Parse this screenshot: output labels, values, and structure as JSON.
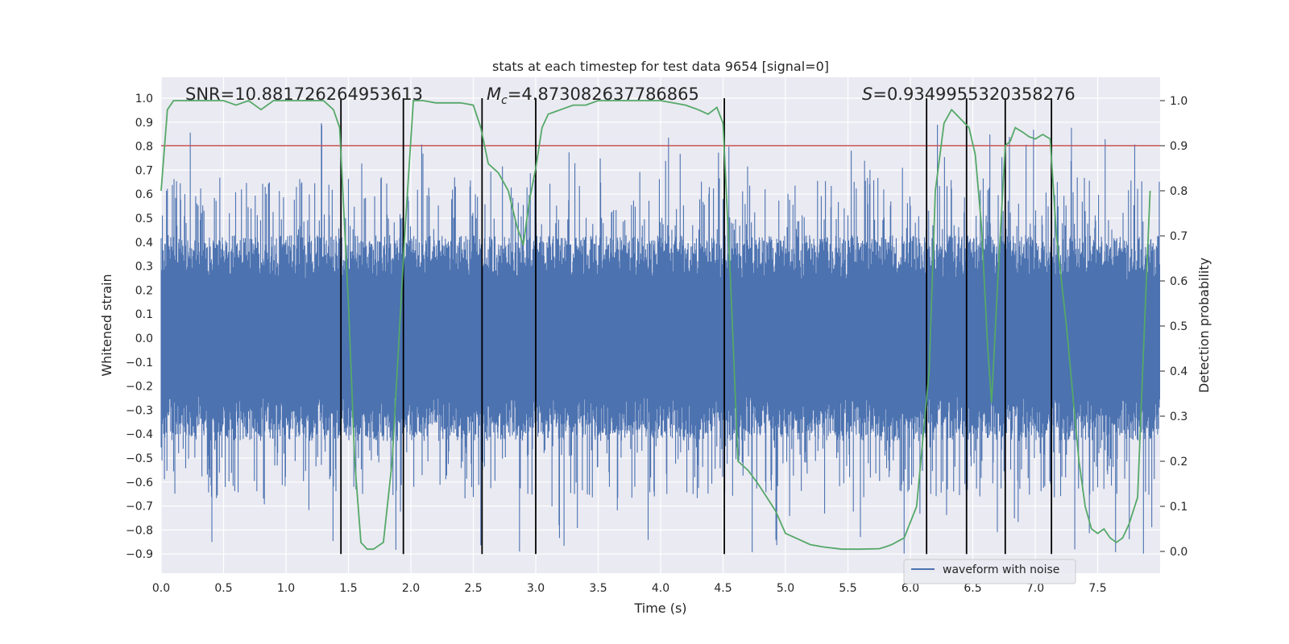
{
  "chart_data": {
    "type": "line",
    "title": "stats at each timestep for test data 9654 [signal=0]",
    "xlabel": "Time (s)",
    "ylabel": "Whitened strain",
    "y2label": "Detection probability",
    "xlim": [
      0.0,
      8.0
    ],
    "ylim": [
      -1.0,
      1.1
    ],
    "y2lim": [
      -0.05,
      1.05
    ],
    "xticks": [
      "0.0",
      "0.5",
      "1.0",
      "1.5",
      "2.0",
      "2.5",
      "3.0",
      "3.5",
      "4.0",
      "4.5",
      "5.0",
      "5.5",
      "6.0",
      "6.5",
      "7.0",
      "7.5"
    ],
    "yticks": [
      "1.0",
      "0.9",
      "0.8",
      "0.7",
      "0.6",
      "0.5",
      "0.4",
      "0.3",
      "0.2",
      "0.1",
      "0.0",
      "−0.1",
      "−0.2",
      "−0.3",
      "−0.4",
      "−0.5",
      "−0.6",
      "−0.7",
      "−0.8",
      "−0.9"
    ],
    "y2ticks": [
      "1.0",
      "0.9",
      "0.8",
      "0.7",
      "0.6",
      "0.5",
      "0.4",
      "0.3",
      "0.2",
      "0.1",
      "0.0"
    ],
    "grid": true,
    "legend": {
      "placement": "lower-right",
      "entries": [
        "waveform with noise"
      ]
    },
    "annotations": {
      "snr": "SNR=10.881726264953613",
      "mc_symbol": "M",
      "mc_sub": "c",
      "mc_value": "=4.873082637786865",
      "s_symbol": "S",
      "s_value": "=0.9349955320358276"
    },
    "waveform": {
      "name": "waveform with noise",
      "color": "#4c72b0",
      "samples": 2400,
      "seed": 9654,
      "core_amplitude": 0.24,
      "bulk_amplitude": 0.42,
      "peak_max": 0.9,
      "trough_min": -0.9
    },
    "threshold": {
      "value": 0.9,
      "axis": "right",
      "color": "#c44e52"
    },
    "vlines": {
      "x": [
        1.44,
        1.94,
        2.57,
        3.0,
        4.51,
        6.13,
        6.45,
        6.76,
        7.13
      ],
      "ymin": -0.9,
      "ymax": 1.0,
      "color": "#000000"
    },
    "probability": {
      "color": "#55a868",
      "x": [
        0.0,
        0.05,
        0.1,
        0.2,
        0.3,
        0.4,
        0.5,
        0.6,
        0.7,
        0.8,
        0.9,
        1.0,
        1.1,
        1.2,
        1.3,
        1.38,
        1.43,
        1.5,
        1.55,
        1.6,
        1.65,
        1.7,
        1.78,
        1.85,
        1.95,
        2.02,
        2.1,
        2.2,
        2.3,
        2.4,
        2.5,
        2.56,
        2.62,
        2.7,
        2.78,
        2.85,
        2.9,
        2.95,
        3.0,
        3.05,
        3.1,
        3.15,
        3.2,
        3.3,
        3.4,
        3.5,
        3.6,
        3.7,
        3.8,
        3.9,
        4.0,
        4.1,
        4.2,
        4.3,
        4.38,
        4.45,
        4.5,
        4.56,
        4.62,
        4.7,
        4.78,
        4.85,
        4.92,
        5.0,
        5.08,
        5.2,
        5.3,
        5.45,
        5.6,
        5.75,
        5.8,
        5.85,
        5.95,
        6.05,
        6.15,
        6.2,
        6.27,
        6.33,
        6.4,
        6.47,
        6.52,
        6.57,
        6.62,
        6.65,
        6.7,
        6.76,
        6.8,
        6.84,
        6.9,
        6.95,
        7.0,
        7.06,
        7.12,
        7.17,
        7.25,
        7.3,
        7.35,
        7.4,
        7.45,
        7.5,
        7.55,
        7.6,
        7.65,
        7.7,
        7.75,
        7.82,
        7.86,
        7.92
      ],
      "values": [
        0.8,
        0.98,
        1.0,
        1.0,
        1.0,
        1.0,
        1.0,
        0.99,
        1.0,
        0.98,
        1.0,
        1.0,
        1.0,
        1.0,
        1.0,
        0.98,
        0.94,
        0.55,
        0.2,
        0.02,
        0.005,
        0.005,
        0.02,
        0.2,
        0.7,
        1.0,
        1.0,
        0.995,
        0.995,
        0.995,
        0.99,
        0.94,
        0.86,
        0.84,
        0.8,
        0.72,
        0.68,
        0.78,
        0.85,
        0.94,
        0.97,
        0.975,
        0.98,
        0.99,
        0.99,
        1.0,
        1.0,
        1.0,
        1.0,
        1.0,
        1.0,
        0.995,
        0.99,
        0.98,
        0.97,
        0.985,
        0.95,
        0.6,
        0.2,
        0.18,
        0.15,
        0.12,
        0.09,
        0.04,
        0.03,
        0.015,
        0.01,
        0.005,
        0.005,
        0.006,
        0.01,
        0.015,
        0.03,
        0.1,
        0.4,
        0.8,
        0.95,
        0.98,
        0.96,
        0.94,
        0.88,
        0.72,
        0.45,
        0.33,
        0.6,
        0.9,
        0.91,
        0.94,
        0.93,
        0.92,
        0.915,
        0.925,
        0.915,
        0.7,
        0.5,
        0.35,
        0.2,
        0.1,
        0.05,
        0.04,
        0.05,
        0.03,
        0.02,
        0.03,
        0.06,
        0.12,
        0.4,
        0.8
      ]
    }
  }
}
